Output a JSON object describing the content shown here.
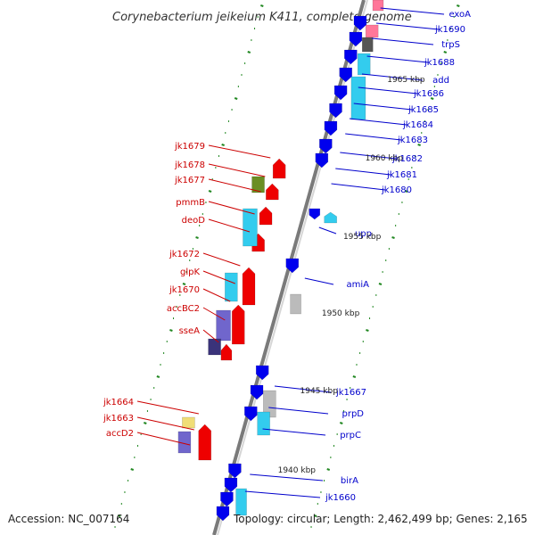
{
  "header": {
    "title": "Corynebacterium jeikeium K411, complete genome"
  },
  "footer": {
    "accession": "Accession: NC_007164",
    "summary": "Topology: circular; Length: 2,462,499 bp; Genes: 2,165"
  },
  "scale_labels": [
    "1965 kbp",
    "1960 kbp",
    "1955 kbp",
    "1950 kbp",
    "1945 kbp",
    "1940 kbp"
  ],
  "left_strand_genes": [
    "exoA",
    "jk1690",
    "trpS",
    "jk1688",
    "add",
    "jk1686",
    "jk1685",
    "jk1684",
    "jk1683",
    "jk1682",
    "jk1681",
    "jk1680",
    "upp",
    "amiA",
    "jk1667",
    "prpD",
    "prpC",
    "birA",
    "jk1660"
  ],
  "right_strand_genes": [
    "jk1679",
    "jk1678",
    "jk1677",
    "pmmB",
    "deoD",
    "jk1672",
    "glpK",
    "jk1670",
    "accBC2",
    "sseA",
    "jk1664",
    "jk1663",
    "accD2"
  ],
  "colors": {
    "backbone": "#8a8a8a",
    "forward_gene": "#ee0000",
    "reverse_gene": "#0000ee",
    "cyan_feature": "#33ccee",
    "olive_feature": "#6b8e23",
    "purple_feature": "#7066cc",
    "gray_feature": "#bbbbbb",
    "pink_feature": "#ff7799",
    "yellow_feature": "#f0dd77",
    "tick_marks": "#228822",
    "right_label_text": "#cc0000",
    "left_label_text": "#0000cc"
  }
}
